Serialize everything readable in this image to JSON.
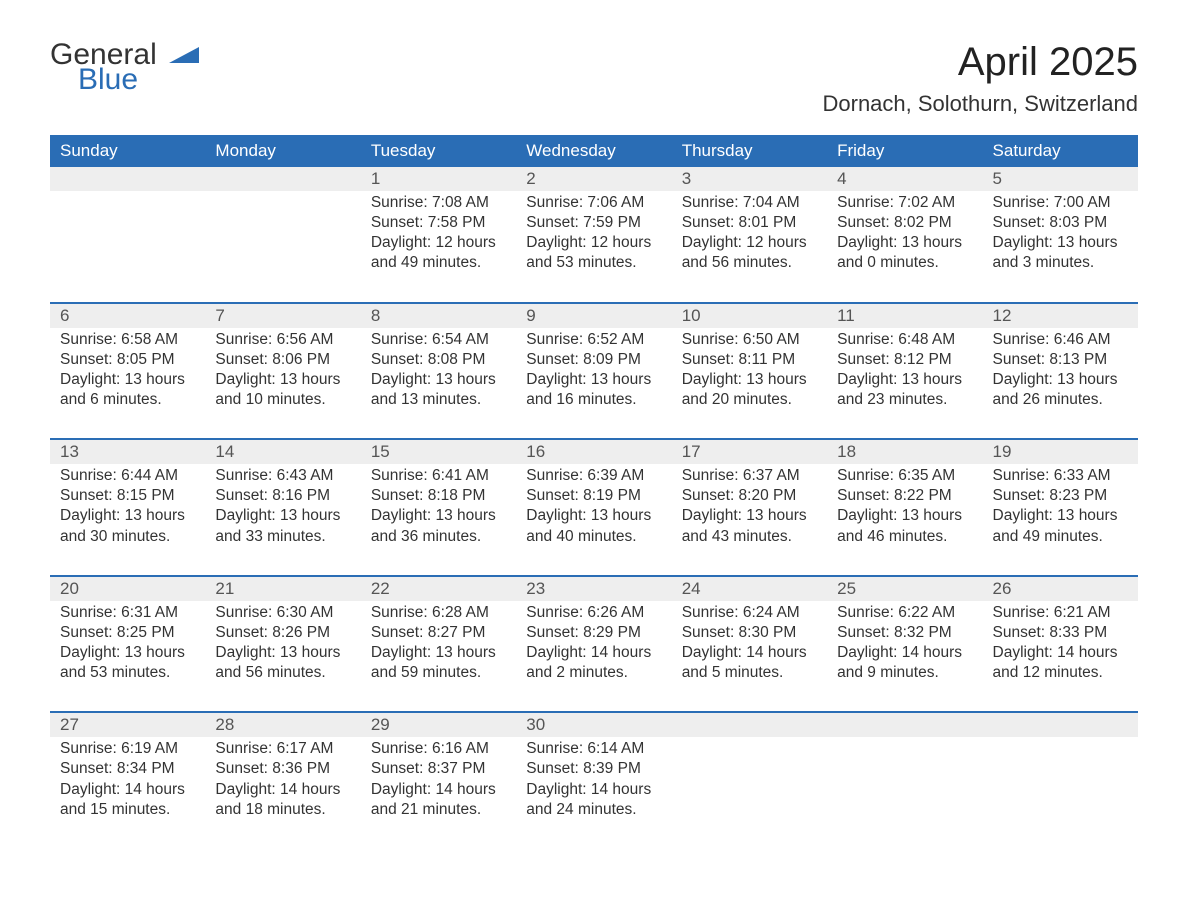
{
  "logo": {
    "text1": "General",
    "text2": "Blue",
    "accent_color": "#2a6db5"
  },
  "title": "April 2025",
  "location": "Dornach, Solothurn, Switzerland",
  "colors": {
    "header_bg": "#2a6db5",
    "header_text": "#ffffff",
    "daynum_bg": "#eeeeee",
    "row_border": "#2a6db5",
    "body_text": "#333333",
    "page_bg": "#ffffff"
  },
  "layout": {
    "columns": 7,
    "rows": 5,
    "font_family": "Arial",
    "title_fontsize": 40,
    "header_fontsize": 17,
    "cell_fontsize": 15.5
  },
  "day_headers": [
    "Sunday",
    "Monday",
    "Tuesday",
    "Wednesday",
    "Thursday",
    "Friday",
    "Saturday"
  ],
  "weeks": [
    [
      null,
      null,
      {
        "n": "1",
        "sr": "Sunrise: 7:08 AM",
        "ss": "Sunset: 7:58 PM",
        "d1": "Daylight: 12 hours",
        "d2": "and 49 minutes."
      },
      {
        "n": "2",
        "sr": "Sunrise: 7:06 AM",
        "ss": "Sunset: 7:59 PM",
        "d1": "Daylight: 12 hours",
        "d2": "and 53 minutes."
      },
      {
        "n": "3",
        "sr": "Sunrise: 7:04 AM",
        "ss": "Sunset: 8:01 PM",
        "d1": "Daylight: 12 hours",
        "d2": "and 56 minutes."
      },
      {
        "n": "4",
        "sr": "Sunrise: 7:02 AM",
        "ss": "Sunset: 8:02 PM",
        "d1": "Daylight: 13 hours",
        "d2": "and 0 minutes."
      },
      {
        "n": "5",
        "sr": "Sunrise: 7:00 AM",
        "ss": "Sunset: 8:03 PM",
        "d1": "Daylight: 13 hours",
        "d2": "and 3 minutes."
      }
    ],
    [
      {
        "n": "6",
        "sr": "Sunrise: 6:58 AM",
        "ss": "Sunset: 8:05 PM",
        "d1": "Daylight: 13 hours",
        "d2": "and 6 minutes."
      },
      {
        "n": "7",
        "sr": "Sunrise: 6:56 AM",
        "ss": "Sunset: 8:06 PM",
        "d1": "Daylight: 13 hours",
        "d2": "and 10 minutes."
      },
      {
        "n": "8",
        "sr": "Sunrise: 6:54 AM",
        "ss": "Sunset: 8:08 PM",
        "d1": "Daylight: 13 hours",
        "d2": "and 13 minutes."
      },
      {
        "n": "9",
        "sr": "Sunrise: 6:52 AM",
        "ss": "Sunset: 8:09 PM",
        "d1": "Daylight: 13 hours",
        "d2": "and 16 minutes."
      },
      {
        "n": "10",
        "sr": "Sunrise: 6:50 AM",
        "ss": "Sunset: 8:11 PM",
        "d1": "Daylight: 13 hours",
        "d2": "and 20 minutes."
      },
      {
        "n": "11",
        "sr": "Sunrise: 6:48 AM",
        "ss": "Sunset: 8:12 PM",
        "d1": "Daylight: 13 hours",
        "d2": "and 23 minutes."
      },
      {
        "n": "12",
        "sr": "Sunrise: 6:46 AM",
        "ss": "Sunset: 8:13 PM",
        "d1": "Daylight: 13 hours",
        "d2": "and 26 minutes."
      }
    ],
    [
      {
        "n": "13",
        "sr": "Sunrise: 6:44 AM",
        "ss": "Sunset: 8:15 PM",
        "d1": "Daylight: 13 hours",
        "d2": "and 30 minutes."
      },
      {
        "n": "14",
        "sr": "Sunrise: 6:43 AM",
        "ss": "Sunset: 8:16 PM",
        "d1": "Daylight: 13 hours",
        "d2": "and 33 minutes."
      },
      {
        "n": "15",
        "sr": "Sunrise: 6:41 AM",
        "ss": "Sunset: 8:18 PM",
        "d1": "Daylight: 13 hours",
        "d2": "and 36 minutes."
      },
      {
        "n": "16",
        "sr": "Sunrise: 6:39 AM",
        "ss": "Sunset: 8:19 PM",
        "d1": "Daylight: 13 hours",
        "d2": "and 40 minutes."
      },
      {
        "n": "17",
        "sr": "Sunrise: 6:37 AM",
        "ss": "Sunset: 8:20 PM",
        "d1": "Daylight: 13 hours",
        "d2": "and 43 minutes."
      },
      {
        "n": "18",
        "sr": "Sunrise: 6:35 AM",
        "ss": "Sunset: 8:22 PM",
        "d1": "Daylight: 13 hours",
        "d2": "and 46 minutes."
      },
      {
        "n": "19",
        "sr": "Sunrise: 6:33 AM",
        "ss": "Sunset: 8:23 PM",
        "d1": "Daylight: 13 hours",
        "d2": "and 49 minutes."
      }
    ],
    [
      {
        "n": "20",
        "sr": "Sunrise: 6:31 AM",
        "ss": "Sunset: 8:25 PM",
        "d1": "Daylight: 13 hours",
        "d2": "and 53 minutes."
      },
      {
        "n": "21",
        "sr": "Sunrise: 6:30 AM",
        "ss": "Sunset: 8:26 PM",
        "d1": "Daylight: 13 hours",
        "d2": "and 56 minutes."
      },
      {
        "n": "22",
        "sr": "Sunrise: 6:28 AM",
        "ss": "Sunset: 8:27 PM",
        "d1": "Daylight: 13 hours",
        "d2": "and 59 minutes."
      },
      {
        "n": "23",
        "sr": "Sunrise: 6:26 AM",
        "ss": "Sunset: 8:29 PM",
        "d1": "Daylight: 14 hours",
        "d2": "and 2 minutes."
      },
      {
        "n": "24",
        "sr": "Sunrise: 6:24 AM",
        "ss": "Sunset: 8:30 PM",
        "d1": "Daylight: 14 hours",
        "d2": "and 5 minutes."
      },
      {
        "n": "25",
        "sr": "Sunrise: 6:22 AM",
        "ss": "Sunset: 8:32 PM",
        "d1": "Daylight: 14 hours",
        "d2": "and 9 minutes."
      },
      {
        "n": "26",
        "sr": "Sunrise: 6:21 AM",
        "ss": "Sunset: 8:33 PM",
        "d1": "Daylight: 14 hours",
        "d2": "and 12 minutes."
      }
    ],
    [
      {
        "n": "27",
        "sr": "Sunrise: 6:19 AM",
        "ss": "Sunset: 8:34 PM",
        "d1": "Daylight: 14 hours",
        "d2": "and 15 minutes."
      },
      {
        "n": "28",
        "sr": "Sunrise: 6:17 AM",
        "ss": "Sunset: 8:36 PM",
        "d1": "Daylight: 14 hours",
        "d2": "and 18 minutes."
      },
      {
        "n": "29",
        "sr": "Sunrise: 6:16 AM",
        "ss": "Sunset: 8:37 PM",
        "d1": "Daylight: 14 hours",
        "d2": "and 21 minutes."
      },
      {
        "n": "30",
        "sr": "Sunrise: 6:14 AM",
        "ss": "Sunset: 8:39 PM",
        "d1": "Daylight: 14 hours",
        "d2": "and 24 minutes."
      },
      null,
      null,
      null
    ]
  ]
}
